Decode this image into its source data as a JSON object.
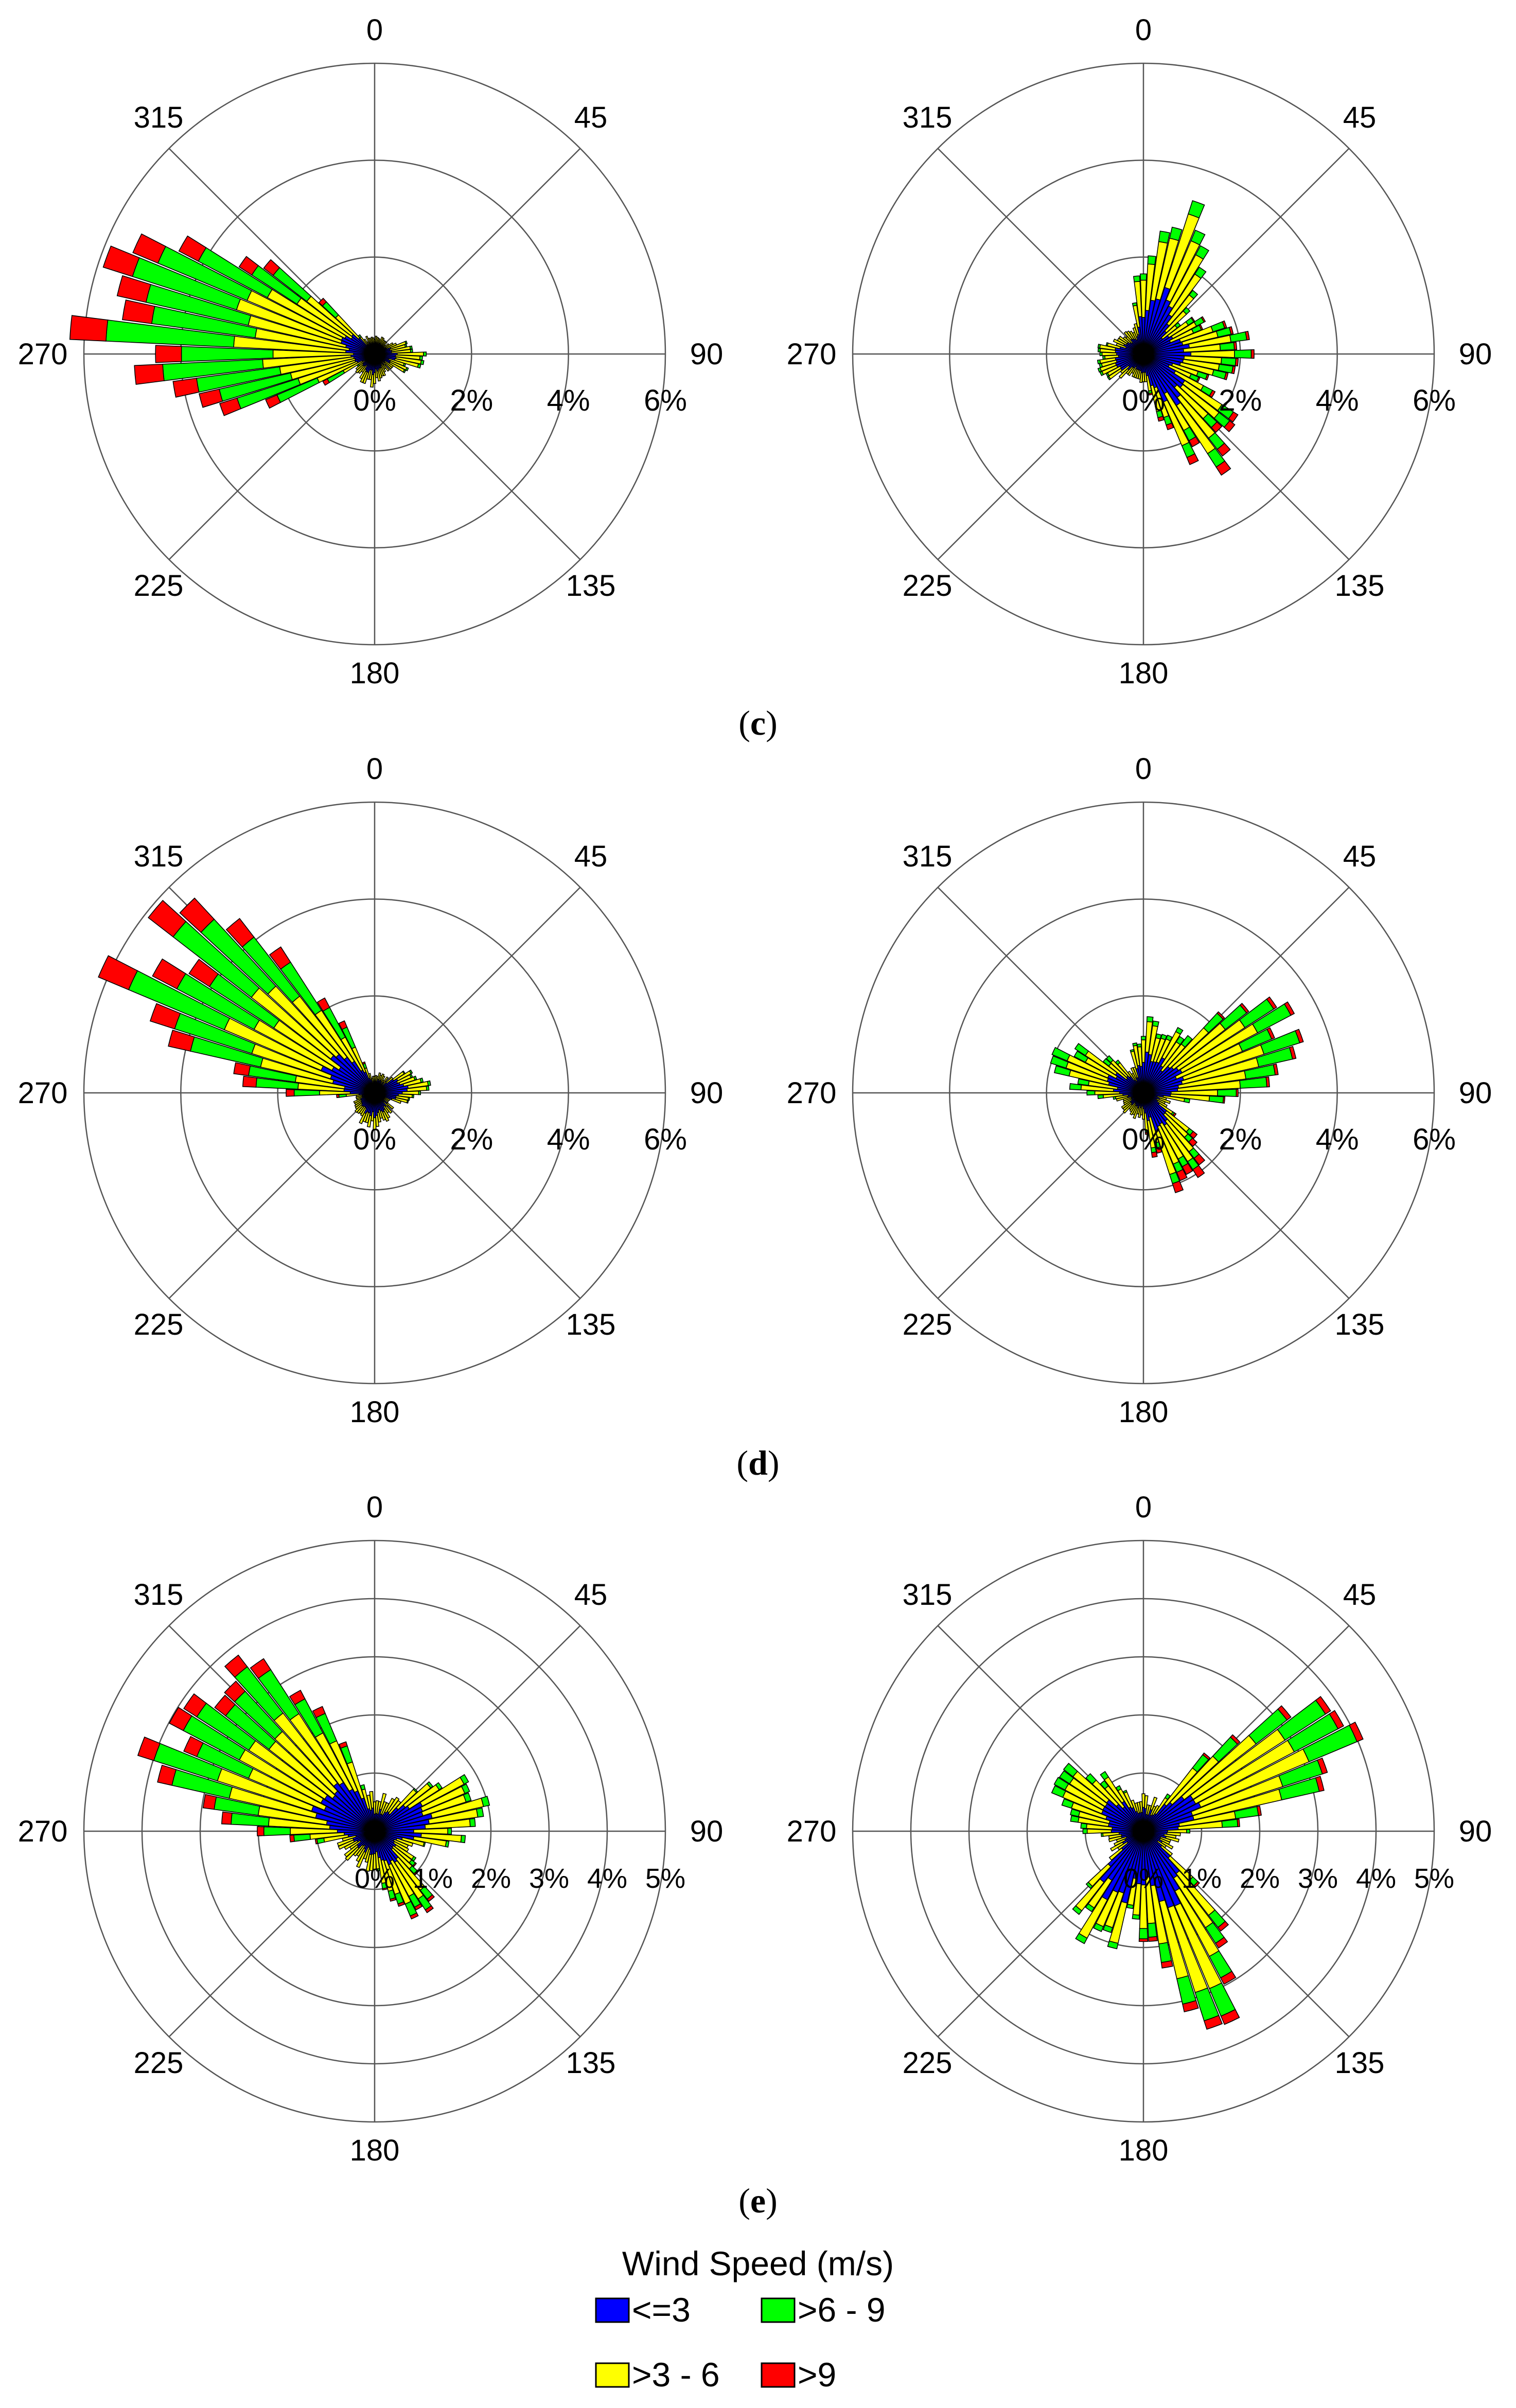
{
  "legend": {
    "title": "Wind Speed (m/s)",
    "entries": [
      {
        "label": "<=3",
        "color": "#0000ff"
      },
      {
        "label": ">6 - 9",
        "color": "#00ff00"
      },
      {
        "label": ">3 - 6",
        "color": "#ffff00"
      },
      {
        "label": ">9",
        "color": "#ff0000"
      }
    ]
  },
  "captions": [
    {
      "paren_open": "(",
      "letter": "c",
      "paren_close": ")"
    },
    {
      "paren_open": "(",
      "letter": "d",
      "paren_close": ")"
    },
    {
      "paren_open": "(",
      "letter": "e",
      "paren_close": ")"
    }
  ],
  "chart_data": [
    {
      "type": "wind-rose",
      "panel_row": "c",
      "panel_col": "left",
      "angle_labels": [
        "0",
        "45",
        "90",
        "135",
        "180",
        "225",
        "270",
        "315"
      ],
      "radial_ticks": [
        "0%",
        "2%",
        "4%",
        "6%"
      ],
      "radial_values": [
        2,
        4,
        6
      ],
      "rmax": 6,
      "bins": [
        "<=3",
        ">3 - 6",
        ">6 - 9",
        ">9"
      ],
      "lobes": [
        {
          "center": 276,
          "width": 42,
          "values": [
            0.3,
            1.9,
            2.3,
            0.65
          ]
        },
        {
          "center": 300,
          "width": 24,
          "values": [
            0.3,
            0.6,
            0.3,
            0.08
          ]
        },
        {
          "center": 95,
          "width": 40,
          "values": [
            0.18,
            0.35,
            0.05,
            0.0
          ]
        },
        {
          "center": 190,
          "width": 60,
          "values": [
            0.15,
            0.1,
            0.0,
            0.0
          ]
        }
      ],
      "base": [
        0.22,
        0.12,
        0.0,
        0.0
      ]
    },
    {
      "type": "wind-rose",
      "panel_row": "c",
      "panel_col": "right",
      "angle_labels": [
        "0",
        "45",
        "90",
        "135",
        "180",
        "225",
        "270",
        "315"
      ],
      "radial_ticks": [
        "0%",
        "2%",
        "4%",
        "6%"
      ],
      "radial_values": [
        2,
        4,
        6
      ],
      "rmax": 6,
      "bins": [
        "<=3",
        ">3 - 6",
        ">6 - 9",
        ">9"
      ],
      "lobes": [
        {
          "center": 18,
          "width": 34,
          "values": [
            0.9,
            1.2,
            0.25,
            0.0
          ]
        },
        {
          "center": 145,
          "width": 30,
          "values": [
            0.8,
            0.9,
            0.3,
            0.18
          ]
        },
        {
          "center": 90,
          "width": 50,
          "values": [
            0.5,
            0.6,
            0.3,
            0.05
          ]
        },
        {
          "center": 260,
          "width": 40,
          "values": [
            0.25,
            0.15,
            0.05,
            0.0
          ]
        }
      ],
      "base": [
        0.35,
        0.18,
        0.0,
        0.0
      ]
    },
    {
      "type": "wind-rose",
      "panel_row": "d",
      "panel_col": "left",
      "angle_labels": [
        "0",
        "45",
        "90",
        "135",
        "180",
        "225",
        "270",
        "315"
      ],
      "radial_ticks": [
        "0%",
        "2%",
        "4%",
        "6%"
      ],
      "radial_values": [
        2,
        4,
        6
      ],
      "rmax": 6,
      "bins": [
        "<=3",
        ">3 - 6",
        ">6 - 9",
        ">9"
      ],
      "lobes": [
        {
          "center": 302,
          "width": 40,
          "values": [
            0.8,
            1.8,
            1.9,
            0.6
          ]
        },
        {
          "center": 80,
          "width": 36,
          "values": [
            0.45,
            0.3,
            0.05,
            0.0
          ]
        },
        {
          "center": 190,
          "width": 70,
          "values": [
            0.2,
            0.1,
            0.0,
            0.0
          ]
        }
      ],
      "base": [
        0.25,
        0.12,
        0.0,
        0.0
      ]
    },
    {
      "type": "wind-rose",
      "panel_row": "d",
      "panel_col": "right",
      "angle_labels": [
        "0",
        "45",
        "90",
        "135",
        "180",
        "225",
        "270",
        "315"
      ],
      "radial_ticks": [
        "0%",
        "2%",
        "4%",
        "6%"
      ],
      "radial_values": [
        2,
        4,
        6
      ],
      "rmax": 6,
      "bins": [
        "<=3",
        ">3 - 6",
        ">6 - 9",
        ">9"
      ],
      "lobes": [
        {
          "center": 68,
          "width": 36,
          "values": [
            0.6,
            1.6,
            0.8,
            0.08
          ]
        },
        {
          "center": 290,
          "width": 36,
          "values": [
            0.4,
            0.6,
            0.3,
            0.0
          ]
        },
        {
          "center": 150,
          "width": 30,
          "values": [
            0.5,
            0.7,
            0.2,
            0.2
          ]
        },
        {
          "center": 15,
          "width": 40,
          "values": [
            0.5,
            0.4,
            0.1,
            0.0
          ]
        }
      ],
      "base": [
        0.3,
        0.2,
        0.0,
        0.0
      ]
    },
    {
      "type": "wind-rose",
      "panel_row": "e",
      "panel_col": "left",
      "angle_labels": [
        "0",
        "45",
        "90",
        "135",
        "180",
        "225",
        "270",
        "315"
      ],
      "radial_ticks": [
        "0%",
        "1%",
        "2%",
        "3%",
        "4%",
        "5%"
      ],
      "radial_values": [
        1,
        2,
        3,
        4,
        5
      ],
      "rmax": 5,
      "bins": [
        "<=3",
        ">3 - 6",
        ">6 - 9",
        ">9"
      ],
      "lobes": [
        {
          "center": 302,
          "width": 46,
          "values": [
            0.8,
            1.5,
            1.2,
            0.3
          ]
        },
        {
          "center": 75,
          "width": 36,
          "values": [
            0.6,
            0.6,
            0.1,
            0.0
          ]
        },
        {
          "center": 150,
          "width": 30,
          "values": [
            0.2,
            0.4,
            0.2,
            0.05
          ]
        }
      ],
      "base": [
        0.35,
        0.25,
        0.0,
        0.0
      ]
    },
    {
      "type": "wind-rose",
      "panel_row": "e",
      "panel_col": "right",
      "angle_labels": [
        "0",
        "45",
        "90",
        "135",
        "180",
        "225",
        "270",
        "315"
      ],
      "radial_ticks": [
        "0%",
        "1%",
        "2%",
        "3%",
        "4%",
        "5%"
      ],
      "radial_values": [
        1,
        2,
        3,
        4,
        5
      ],
      "rmax": 5,
      "bins": [
        "<=3",
        ">3 - 6",
        ">6 - 9",
        ">9"
      ],
      "lobes": [
        {
          "center": 62,
          "width": 30,
          "values": [
            0.6,
            1.6,
            0.8,
            0.1
          ]
        },
        {
          "center": 158,
          "width": 28,
          "values": [
            1.0,
            1.3,
            0.5,
            0.15
          ]
        },
        {
          "center": 205,
          "width": 30,
          "values": [
            0.9,
            0.5,
            0.1,
            0.0
          ]
        },
        {
          "center": 300,
          "width": 40,
          "values": [
            0.4,
            0.5,
            0.2,
            0.0
          ]
        }
      ],
      "base": [
        0.35,
        0.2,
        0.0,
        0.0
      ]
    }
  ]
}
